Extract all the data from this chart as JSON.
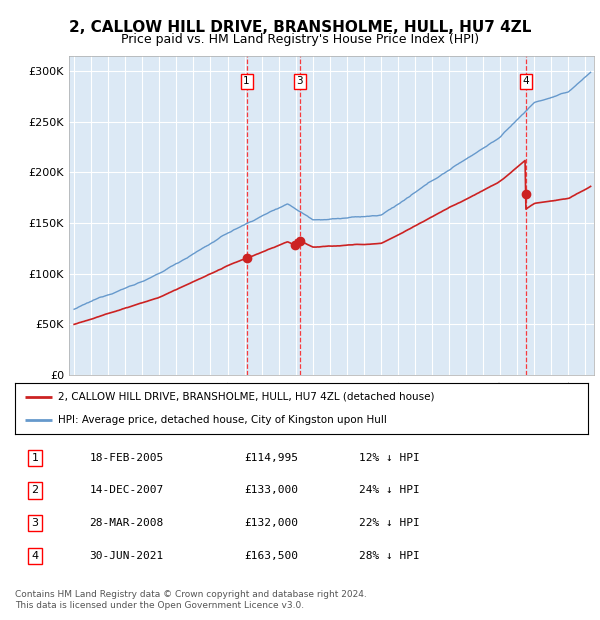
{
  "title": "2, CALLOW HILL DRIVE, BRANSHOLME, HULL, HU7 4ZL",
  "subtitle": "Price paid vs. HM Land Registry's House Price Index (HPI)",
  "background_color": "#dce9f5",
  "plot_bg_color": "#dce9f5",
  "ylabel_ticks": [
    "£0",
    "£50K",
    "£100K",
    "£150K",
    "£200K",
    "£250K",
    "£300K"
  ],
  "ytick_values": [
    0,
    50000,
    100000,
    150000,
    200000,
    250000,
    300000
  ],
  "ylim": [
    0,
    315000
  ],
  "xlim_start": 1994.7,
  "xlim_end": 2025.5,
  "hpi_color": "#6699cc",
  "price_color": "#cc2222",
  "transactions": [
    {
      "num": 1,
      "year": 2005.12,
      "price": 114995,
      "label": "18-FEB-2005",
      "price_str": "£114,995",
      "pct": "12% ↓ HPI",
      "vline": true
    },
    {
      "num": 2,
      "year": 2007.95,
      "price": 133000,
      "label": "14-DEC-2007",
      "price_str": "£133,000",
      "pct": "24% ↓ HPI",
      "vline": false
    },
    {
      "num": 3,
      "year": 2008.24,
      "price": 132000,
      "label": "28-MAR-2008",
      "price_str": "£132,000",
      "pct": "22% ↓ HPI",
      "vline": true
    },
    {
      "num": 4,
      "year": 2021.49,
      "price": 163500,
      "label": "30-JUN-2021",
      "price_str": "£163,500",
      "pct": "28% ↓ HPI",
      "vline": true
    }
  ],
  "legend_line1": "2, CALLOW HILL DRIVE, BRANSHOLME, HULL, HU7 4ZL (detached house)",
  "legend_line2": "HPI: Average price, detached house, City of Kingston upon Hull",
  "footnote": "Contains HM Land Registry data © Crown copyright and database right 2024.\nThis data is licensed under the Open Government Licence v3.0.",
  "table_rows": [
    [
      "1",
      "18-FEB-2005",
      "£114,995",
      "12% ↓ HPI"
    ],
    [
      "2",
      "14-DEC-2007",
      "£133,000",
      "24% ↓ HPI"
    ],
    [
      "3",
      "28-MAR-2008",
      "£132,000",
      "22% ↓ HPI"
    ],
    [
      "4",
      "30-JUN-2021",
      "£163,500",
      "28% ↓ HPI"
    ]
  ]
}
